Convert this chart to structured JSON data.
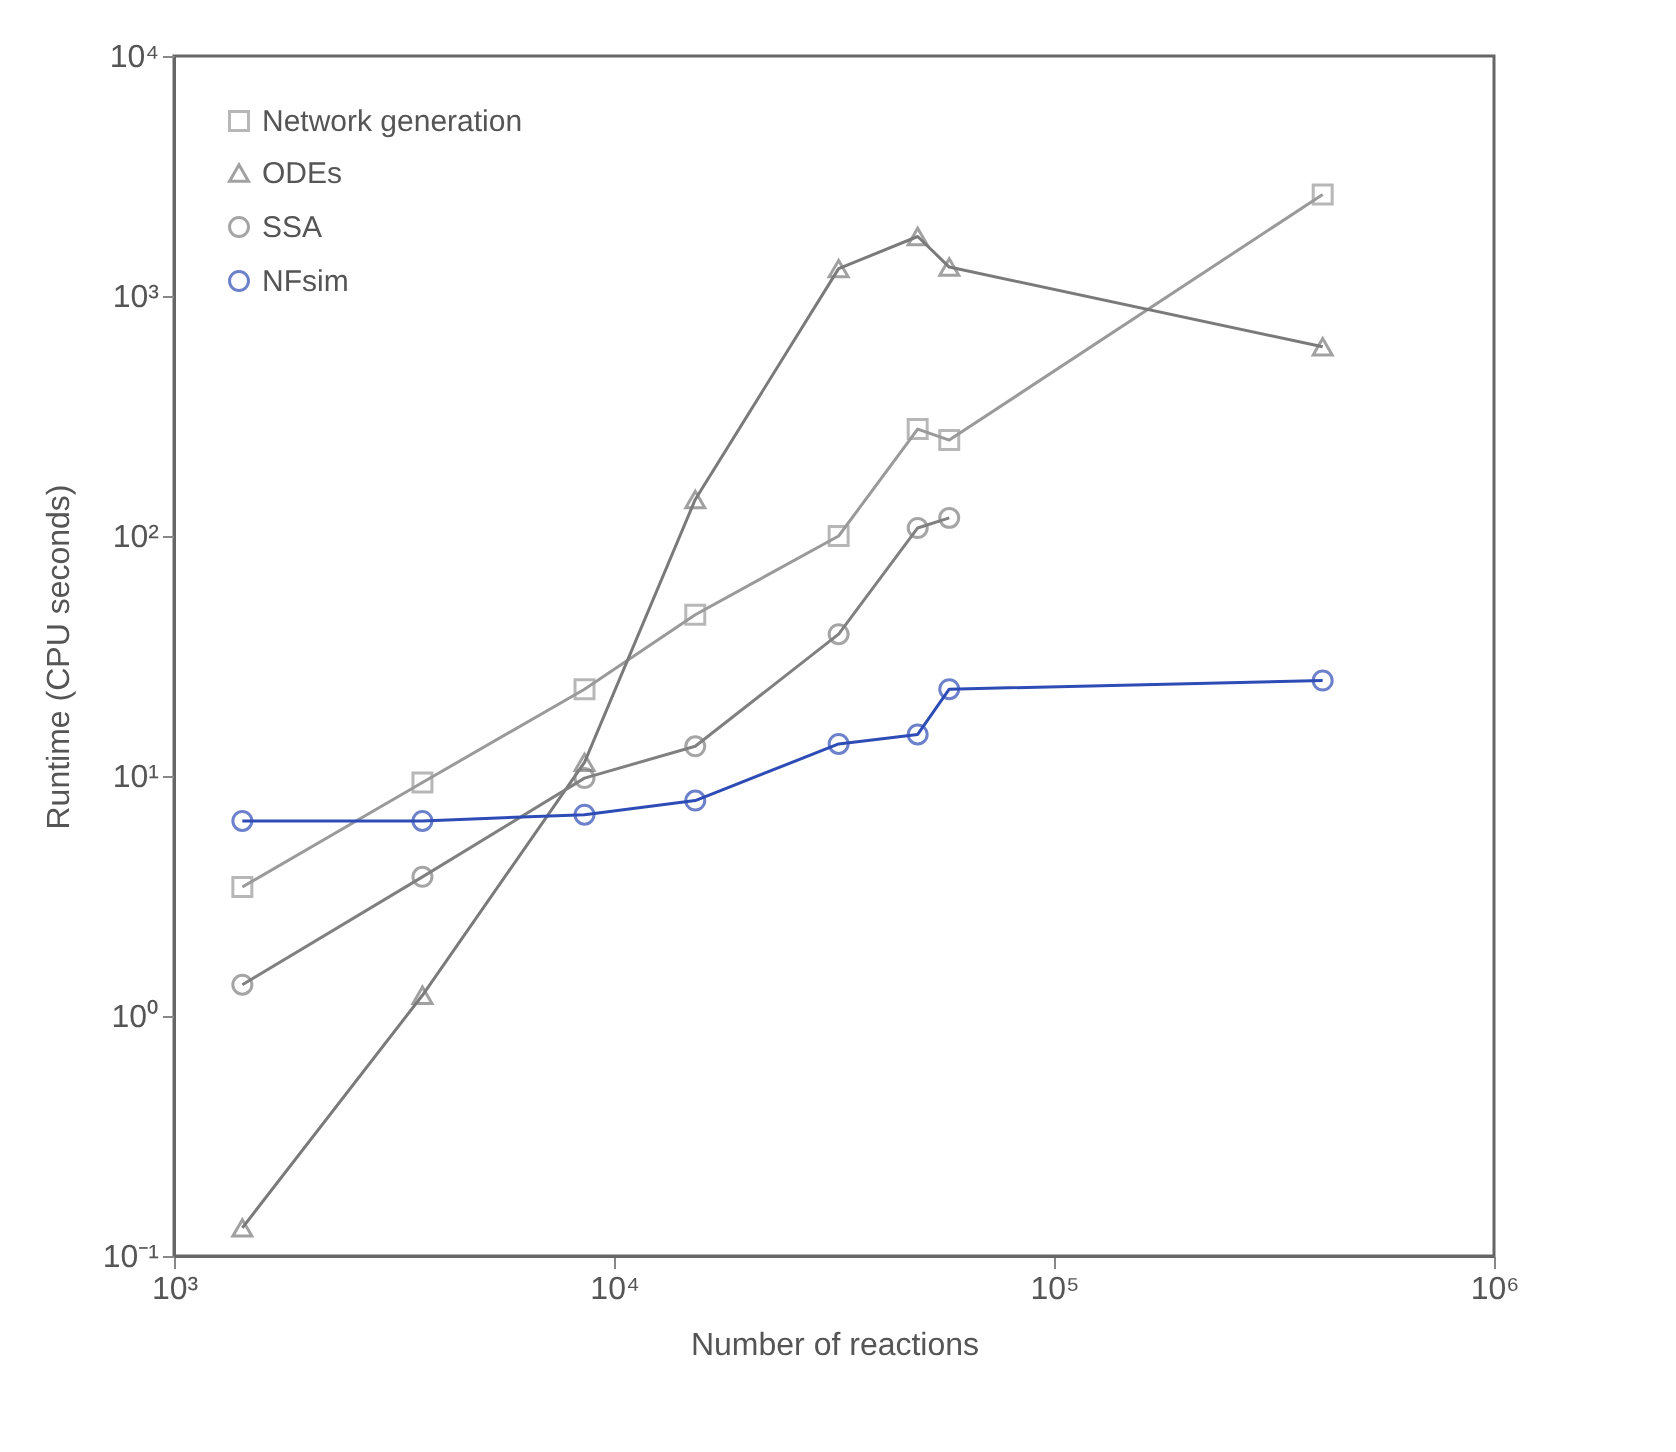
{
  "chart_data": {
    "type": "line",
    "xlabel": "Number of reactions",
    "ylabel": "Runtime (CPU seconds)",
    "x": [
      1430,
      3670,
      8570,
      15300,
      32400,
      49000,
      57800,
      408000
    ],
    "series": [
      {
        "name": "Network generation",
        "color": "#9a9a9a",
        "marker": "square",
        "values": [
          3.45,
          9.4,
          23,
          47,
          100,
          279,
          251,
          2650
        ]
      },
      {
        "name": "ODEs",
        "color": "#7a7a7a",
        "marker": "triangle",
        "values": [
          0.131,
          1.22,
          11.4,
          142,
          1300,
          1770,
          1320,
          614
        ]
      },
      {
        "name": "SSA",
        "color": "#808080",
        "marker": "circle",
        "values": [
          1.35,
          3.8,
          9.8,
          13.3,
          39,
          108,
          119,
          null
        ]
      },
      {
        "name": "NFsim",
        "color": "#2e4cb5",
        "marker": "circle",
        "values": [
          6.5,
          6.5,
          6.9,
          7.9,
          13.6,
          14.9,
          23,
          25
        ]
      }
    ],
    "log": "xy",
    "grid": false,
    "legend": "top left",
    "xlim": [
      1000,
      1000000
    ],
    "ylim": [
      0.1,
      10000
    ],
    "xticks": [
      {
        "value": 1000,
        "label": "10³"
      },
      {
        "value": 10000,
        "label": "10⁴"
      },
      {
        "value": 100000,
        "label": "10⁵"
      },
      {
        "value": 1000000,
        "label": "10⁶"
      }
    ],
    "yticks": [
      {
        "value": 0.1,
        "label": "10⁻¹"
      },
      {
        "value": 1,
        "label": "10⁰"
      },
      {
        "value": 10,
        "label": "10¹"
      },
      {
        "value": 100,
        "label": "10²"
      },
      {
        "value": 1000,
        "label": "10³"
      },
      {
        "value": 10000,
        "label": "10⁴"
      }
    ]
  }
}
